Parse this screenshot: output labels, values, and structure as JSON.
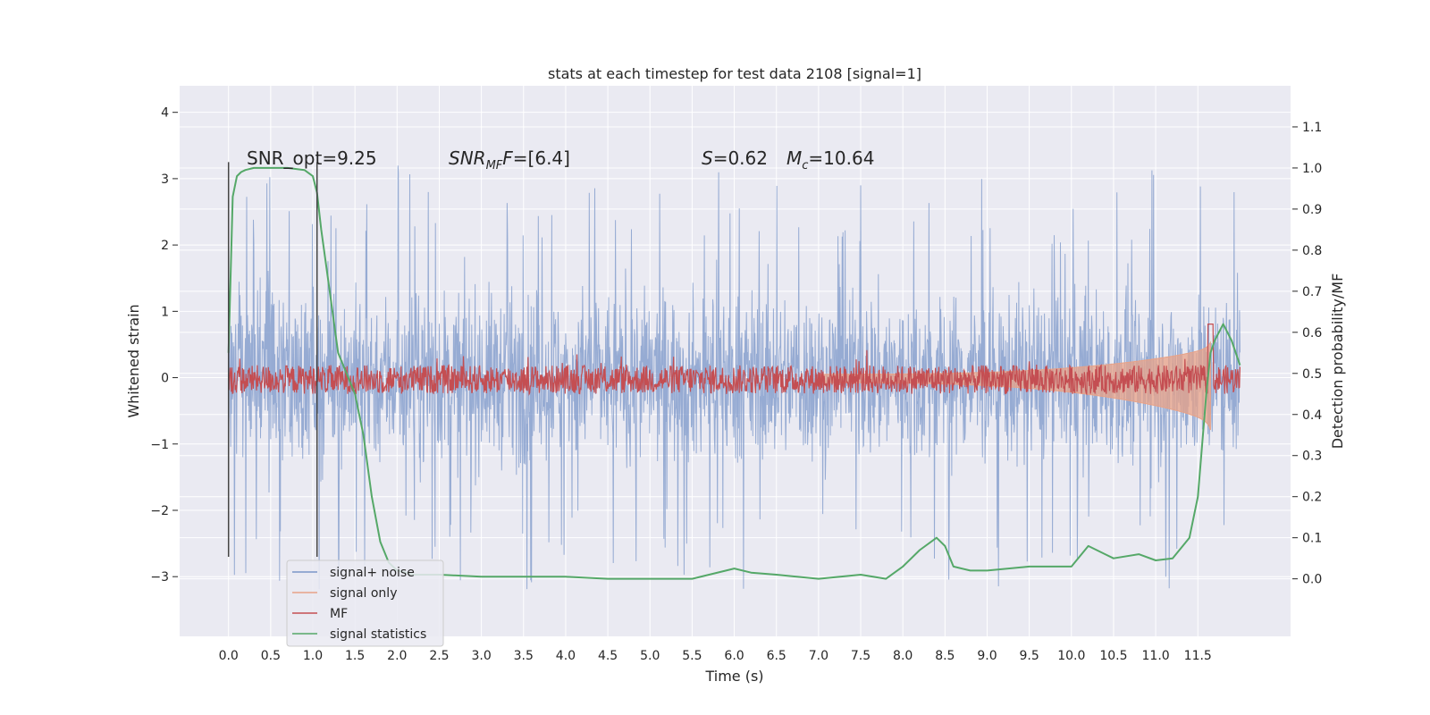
{
  "chart_data": {
    "type": "line",
    "title": "stats at each timestep for test data 2108 [signal=1]",
    "xlabel": "Time (s)",
    "ylabel": "Whitened strain",
    "y2label": "Detection probability/MF",
    "xlim": [
      -0.58,
      12.6
    ],
    "ylim": [
      -3.9,
      4.4
    ],
    "y2lim": [
      -0.14,
      1.2
    ],
    "x_ticks": [
      "0.0",
      "0.5",
      "1.0",
      "1.5",
      "2.0",
      "2.5",
      "3.0",
      "3.5",
      "4.0",
      "4.5",
      "5.0",
      "5.5",
      "6.0",
      "6.5",
      "7.0",
      "7.5",
      "8.0",
      "8.5",
      "9.0",
      "9.5",
      "10.0",
      "10.5",
      "11.0",
      "11.5"
    ],
    "y_ticks": [
      "4",
      "3",
      "2",
      "1",
      "0",
      "−1",
      "−2",
      "−3"
    ],
    "y2_ticks": [
      "1.1",
      "1.0",
      "0.9",
      "0.8",
      "0.7",
      "0.6",
      "0.5",
      "0.4",
      "0.3",
      "0.2",
      "0.1",
      "0.0"
    ],
    "grid": true,
    "legend_position": "lower-left",
    "annotations": {
      "snr_opt": "SNR_opt=9.25",
      "snr_mf_name": "SNR",
      "snr_mf_sub": "MF",
      "snr_mf_value": "=[6.4]",
      "s_name": "S",
      "s_value": "=0.62",
      "mc_name": "M",
      "mc_sub": "c",
      "mc_value": "=10.64"
    },
    "vertical_lines": [
      0.0,
      1.05
    ],
    "series": [
      {
        "name": "signal+ noise",
        "color": "#7a96c8",
        "axis": "left",
        "band": {
          "lower_typical": -1.5,
          "upper_typical": 1.5
        }
      },
      {
        "name": "signal only",
        "color": "#e8a287",
        "axis": "left",
        "chirp_end": 11.65
      },
      {
        "name": "MF",
        "color": "#c44e52",
        "axis": "right",
        "typical_range": [
          0.45,
          0.52
        ],
        "peak": {
          "x": 11.65,
          "y": 0.62
        }
      },
      {
        "name": "signal statistics",
        "color": "#55a868",
        "axis": "right",
        "x": [
          0.0,
          0.05,
          0.1,
          0.15,
          0.2,
          0.3,
          0.5,
          0.7,
          0.9,
          1.0,
          1.05,
          1.1,
          1.2,
          1.3,
          1.4,
          1.5,
          1.6,
          1.7,
          1.8,
          1.9,
          2.0,
          2.2,
          2.5,
          3.0,
          3.5,
          4.0,
          4.5,
          5.0,
          5.5,
          6.0,
          6.2,
          6.5,
          7.0,
          7.5,
          7.8,
          8.0,
          8.2,
          8.4,
          8.5,
          8.6,
          8.8,
          9.0,
          9.5,
          10.0,
          10.2,
          10.4,
          10.5,
          10.8,
          11.0,
          11.2,
          11.4,
          11.5,
          11.6,
          11.65,
          11.7,
          11.8,
          11.9,
          12.0
        ],
        "y": [
          0.55,
          0.93,
          0.98,
          0.99,
          0.995,
          1.0,
          1.0,
          1.0,
          0.995,
          0.98,
          0.94,
          0.85,
          0.7,
          0.55,
          0.5,
          0.45,
          0.35,
          0.2,
          0.09,
          0.04,
          0.02,
          0.01,
          0.01,
          0.005,
          0.005,
          0.005,
          0.0,
          0.0,
          0.0,
          0.025,
          0.015,
          0.01,
          0.0,
          0.01,
          0.0,
          0.03,
          0.07,
          0.1,
          0.08,
          0.03,
          0.02,
          0.02,
          0.03,
          0.03,
          0.08,
          0.06,
          0.05,
          0.06,
          0.045,
          0.05,
          0.1,
          0.2,
          0.45,
          0.55,
          0.58,
          0.62,
          0.58,
          0.52
        ]
      }
    ]
  }
}
